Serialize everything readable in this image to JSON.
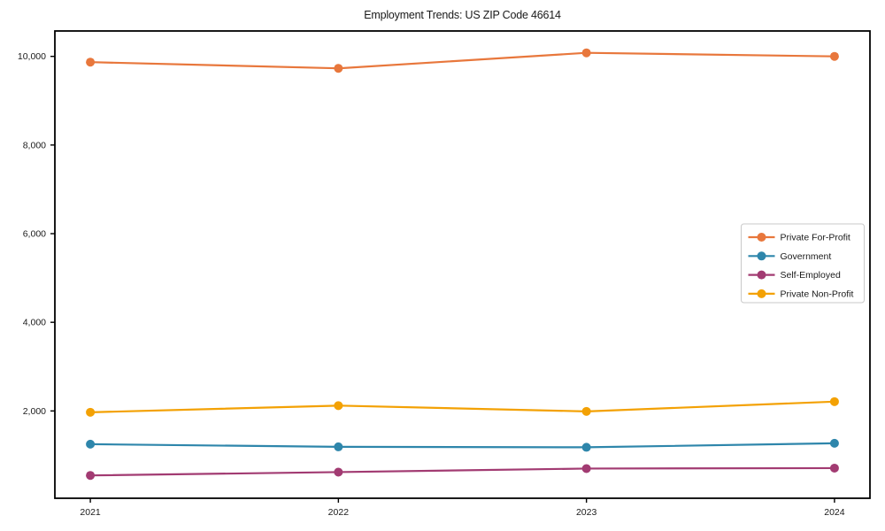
{
  "chart_data": {
    "type": "line",
    "title": "Employment Trends: US ZIP Code 46614",
    "xlabel": "",
    "ylabel": "",
    "x": [
      2021,
      2022,
      2023,
      2024
    ],
    "x_tick_labels": [
      "2021",
      "2022",
      "2023",
      "2024"
    ],
    "y_ticks": [
      {
        "value": 2000,
        "label": "2,000"
      },
      {
        "value": 4000,
        "label": "4,000"
      },
      {
        "value": 6000,
        "label": "6,000"
      },
      {
        "value": 8000,
        "label": "8,000"
      },
      {
        "value": 10000,
        "label": "10,000"
      }
    ],
    "series": [
      {
        "name": "Private For-Profit",
        "color": "#e8773c",
        "values": [
          9870,
          9730,
          10080,
          10000
        ]
      },
      {
        "name": "Government",
        "color": "#2e86ab",
        "values": [
          1250,
          1190,
          1180,
          1270
        ]
      },
      {
        "name": "Self-Employed",
        "color": "#a23b72",
        "values": [
          545,
          620,
          700,
          710
        ]
      },
      {
        "name": "Private Non-Profit",
        "color": "#f3a104",
        "values": [
          1970,
          2120,
          1990,
          2210
        ]
      }
    ],
    "xlim": [
      2020.857,
      2024.143
    ],
    "ylim": [
      30,
      10573
    ],
    "grid": false,
    "legend_position": "right-center",
    "marker": "circle",
    "line_width": 2.2,
    "marker_radius": 5,
    "axis_color": "#000000",
    "text_color": "#1a1a1a",
    "background": "#ffffff"
  }
}
